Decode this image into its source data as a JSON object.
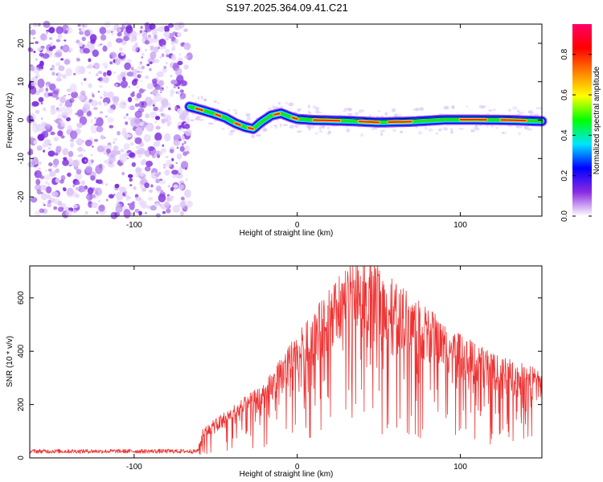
{
  "title": "S197.2025.364.09.41.C21",
  "chart_data": [
    {
      "type": "heatmap",
      "xlabel": "Height of straight line (km)",
      "ylabel": "Frequency (Hz)",
      "xlim": [
        -164,
        150
      ],
      "ylim": [
        -25,
        25
      ],
      "xticks": [
        -100,
        0,
        100
      ],
      "yticks": [
        -20,
        -10,
        0,
        10,
        20
      ],
      "noise_region_x": [
        -164,
        -66
      ],
      "colorbar": {
        "label": "Normalized spectral amplitude",
        "range": [
          0,
          0.95
        ],
        "ticks": [
          0.0,
          0.2,
          0.4,
          0.6,
          0.8
        ],
        "colors": [
          "#ffffff",
          "#8a2be2",
          "#0000ff",
          "#00e5ff",
          "#00ff00",
          "#ffff00",
          "#ff8000",
          "#ff0000",
          "#ff0066"
        ]
      },
      "ridge": {
        "x": [
          -66,
          -60,
          -52,
          -44,
          -38,
          -32,
          -27,
          -22,
          -16,
          -10,
          -4,
          0,
          10,
          30,
          50,
          70,
          90,
          110,
          130,
          150
        ],
        "y": [
          3.5,
          2.8,
          1.8,
          0.6,
          -0.8,
          -1.8,
          -2.3,
          -0.5,
          1.2,
          1.8,
          0.8,
          0.3,
          0.0,
          -0.2,
          -0.6,
          -0.4,
          0.1,
          0.1,
          0.0,
          -0.3
        ]
      }
    },
    {
      "type": "line",
      "xlabel": "Height of straight line (km)",
      "ylabel": "SNR (10 * v/v)",
      "xlim": [
        -164,
        150
      ],
      "ylim": [
        0,
        720
      ],
      "xticks": [
        -100,
        0,
        100
      ],
      "yticks": [
        0,
        200,
        400,
        600
      ],
      "color": "#ee3333",
      "envelope": {
        "x": [
          -164,
          -100,
          -61,
          -58,
          -40,
          -20,
          0,
          20,
          35,
          45,
          60,
          80,
          100,
          120,
          150
        ],
        "mid": [
          25,
          25,
          25,
          90,
          160,
          230,
          380,
          520,
          610,
          610,
          540,
          460,
          380,
          320,
          270
        ]
      }
    }
  ]
}
